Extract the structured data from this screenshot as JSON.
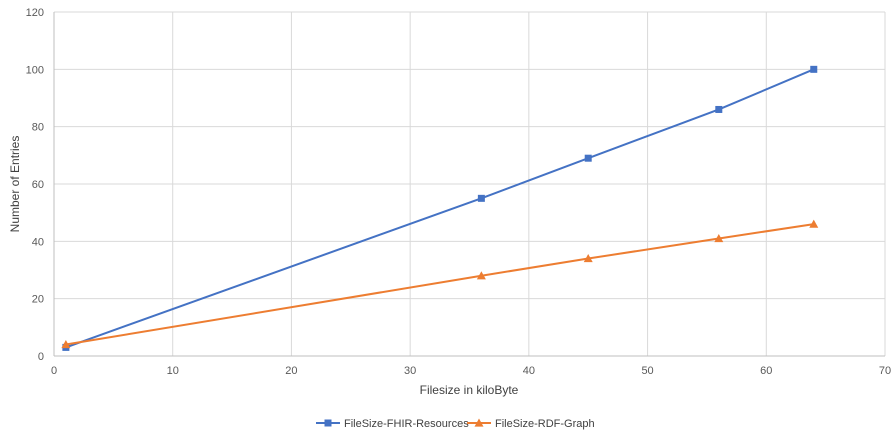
{
  "chart_data": {
    "type": "scatter",
    "title": "",
    "xlabel": "Filesize in kiloByte",
    "ylabel": "Number of Entries",
    "xlim": [
      0,
      70
    ],
    "ylim": [
      0,
      120
    ],
    "x_ticks": [
      0,
      10,
      20,
      30,
      40,
      50,
      60,
      70
    ],
    "y_ticks": [
      0,
      20,
      40,
      60,
      80,
      100,
      120
    ],
    "grid": true,
    "legend_position": "bottom",
    "series": [
      {
        "name": "FileSize-FHIR-Resources",
        "color": "#4472c4",
        "marker": "square",
        "x": [
          1,
          36,
          45,
          56,
          64
        ],
        "y": [
          3,
          55,
          69,
          86,
          100
        ]
      },
      {
        "name": "FileSize-RDF-Graph",
        "color": "#ed7d31",
        "marker": "triangle",
        "x": [
          1,
          36,
          45,
          56,
          64
        ],
        "y": [
          4,
          28,
          34,
          41,
          46
        ]
      }
    ]
  }
}
